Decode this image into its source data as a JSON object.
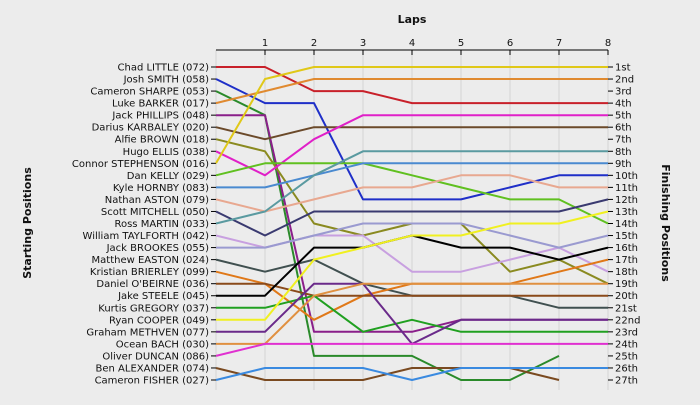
{
  "chart_data": {
    "type": "line",
    "title": "Laps",
    "xlabel": "Laps",
    "ylabel_left": "Starting Positions",
    "ylabel_right": "Finishing Positions",
    "x_ticks": [
      "1",
      "2",
      "3",
      "4",
      "5",
      "6",
      "7",
      "8"
    ],
    "xlim": [
      0,
      8
    ],
    "ylim": [
      1,
      27
    ],
    "grid": "vertical",
    "drivers": [
      "Chad LITTLE (072)",
      "Josh SMITH (058)",
      "Cameron SHARPE (053)",
      "Luke BARKER (017)",
      "Jack PHILLIPS (048)",
      "Darius KARBALEY (020)",
      "Alfie BROWN (018)",
      "Hugo ELLIS (038)",
      "Connor STEPHENSON (016)",
      "Dan KELLY (029)",
      "Kyle HORNBY (083)",
      "Nathan ASTON (079)",
      "Scott MITCHELL (050)",
      "Ross MARTIN (033)",
      "William TAYLFORTH (042)",
      "Jack BROOKES (055)",
      "Matthew EASTON (024)",
      "Kristian BRIERLEY (099)",
      "Daniel O'BEIRNE (036)",
      "Jake STEELE (045)",
      "Kurtis GREGORY (037)",
      "Ryan COOPER (049)",
      "Graham METHVEN (077)",
      "Ocean BACH (030)",
      "Oliver DUNCAN (086)",
      "Ben ALEXANDER (074)",
      "Cameron FISHER (027)"
    ],
    "finishing_labels": [
      "1st",
      "2nd",
      "3rd",
      "4th",
      "5th",
      "6th",
      "7th",
      "8th",
      "9th",
      "10th",
      "11th",
      "12th",
      "13th",
      "14th",
      "15th",
      "16th",
      "17th",
      "18th",
      "19th",
      "20th",
      "21st",
      "22nd",
      "23rd",
      "24th",
      "25th",
      "26th",
      "27th"
    ],
    "series": [
      {
        "color": "#c8202a",
        "positions": [
          1,
          1,
          3,
          3,
          4,
          4,
          4,
          4,
          4
        ]
      },
      {
        "color": "#1f2fc8",
        "positions": [
          2,
          4,
          4,
          12,
          12,
          12,
          11,
          10,
          10
        ]
      },
      {
        "color": "#2a8a2a",
        "positions": [
          3,
          5,
          25,
          25,
          25,
          27,
          27,
          25,
          null
        ]
      },
      {
        "color": "#e08a30",
        "positions": [
          4,
          3,
          2,
          2,
          2,
          2,
          2,
          2,
          2
        ]
      },
      {
        "color": "#8a1f8a",
        "positions": [
          5,
          5,
          23,
          23,
          23,
          22,
          22,
          22,
          22
        ]
      },
      {
        "color": "#6b4a2a",
        "positions": [
          6,
          7,
          6,
          6,
          6,
          6,
          6,
          6,
          6
        ]
      },
      {
        "color": "#8a8a20",
        "positions": [
          7,
          8,
          14,
          15,
          14,
          14,
          18,
          17,
          19
        ]
      },
      {
        "color": "#e020c8",
        "positions": [
          8,
          10,
          7,
          5,
          5,
          5,
          5,
          5,
          5
        ]
      },
      {
        "color": "#e0c818",
        "positions": [
          9,
          2,
          1,
          1,
          1,
          1,
          1,
          1,
          1
        ]
      },
      {
        "color": "#60c020",
        "positions": [
          10,
          9,
          9,
          9,
          10,
          11,
          12,
          12,
          14
        ]
      },
      {
        "color": "#4a8ad0",
        "positions": [
          11,
          11,
          10,
          9,
          9,
          9,
          9,
          9,
          9
        ]
      },
      {
        "color": "#e8a890",
        "positions": [
          12,
          13,
          12,
          11,
          11,
          10,
          10,
          11,
          11
        ]
      },
      {
        "color": "#3a3a70",
        "positions": [
          13,
          15,
          13,
          13,
          13,
          13,
          13,
          13,
          12
        ]
      },
      {
        "color": "#5a9aa0",
        "positions": [
          14,
          13,
          10,
          8,
          8,
          8,
          8,
          8,
          8
        ]
      },
      {
        "color": "#c8a0e0",
        "positions": [
          15,
          16,
          15,
          15,
          18,
          18,
          17,
          16,
          18
        ]
      },
      {
        "color": "#9a9ad0",
        "positions": [
          16,
          16,
          15,
          14,
          14,
          14,
          15,
          16,
          15
        ]
      },
      {
        "color": "#405050",
        "positions": [
          17,
          18,
          17,
          19,
          20,
          20,
          20,
          21,
          21
        ]
      },
      {
        "color": "#e07818",
        "positions": [
          18,
          19,
          22,
          20,
          19,
          19,
          19,
          18,
          17
        ]
      },
      {
        "color": "#8a4a1a",
        "positions": [
          19,
          19,
          20,
          20,
          20,
          20,
          20,
          20,
          20
        ]
      },
      {
        "color": "#000000",
        "positions": [
          20,
          20,
          16,
          16,
          15,
          16,
          16,
          17,
          16
        ]
      },
      {
        "color": "#20a020",
        "positions": [
          21,
          21,
          20,
          23,
          22,
          23,
          23,
          23,
          23
        ]
      },
      {
        "color": "#f0f020",
        "positions": [
          22,
          22,
          17,
          16,
          15,
          15,
          14,
          14,
          13
        ]
      },
      {
        "color": "#6a2a8a",
        "positions": [
          23,
          23,
          19,
          19,
          24,
          22,
          22,
          22,
          22
        ]
      },
      {
        "color": "#e09040",
        "positions": [
          24,
          24,
          20,
          19,
          19,
          19,
          19,
          19,
          19
        ]
      },
      {
        "color": "#e030d0",
        "positions": [
          25,
          24,
          24,
          24,
          24,
          24,
          24,
          24,
          24
        ]
      },
      {
        "color": "#7a4a20",
        "positions": [
          26,
          27,
          27,
          27,
          26,
          26,
          26,
          27,
          null
        ]
      },
      {
        "color": "#3a8ae0",
        "positions": [
          27,
          26,
          26,
          26,
          27,
          26,
          26,
          26,
          26
        ]
      }
    ]
  }
}
